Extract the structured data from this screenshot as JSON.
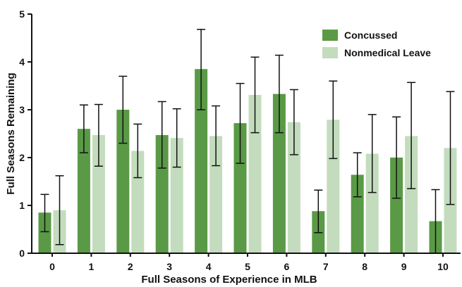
{
  "colors": {
    "concussed": "#5a9a46",
    "nonmedical": "#c3dcbd",
    "axis": "#111111",
    "error": "#111111"
  },
  "chart_data": {
    "type": "bar",
    "xlabel": "Full Seasons of Experience in MLB",
    "ylabel": "Full Seasons Remaining",
    "ylim": [
      0,
      5
    ],
    "yticks": [
      "0",
      "1",
      "2",
      "3",
      "4",
      "5"
    ],
    "categories": [
      "0",
      "1",
      "2",
      "3",
      "4",
      "5",
      "6",
      "7",
      "8",
      "9",
      "10"
    ],
    "legend_position": "top-right",
    "series": [
      {
        "name": "Concussed",
        "values": [
          0.85,
          2.6,
          3.0,
          2.47,
          3.85,
          2.72,
          3.33,
          0.88,
          1.64,
          2.0,
          0.67
        ],
        "err_low": [
          0.45,
          2.1,
          2.3,
          1.78,
          3.0,
          1.88,
          2.52,
          0.43,
          1.18,
          1.15,
          0.0
        ],
        "err_high": [
          1.23,
          3.1,
          3.7,
          3.17,
          4.68,
          3.55,
          4.14,
          1.32,
          2.1,
          2.85,
          1.33
        ]
      },
      {
        "name": "Nonmedical Leave",
        "values": [
          0.9,
          2.47,
          2.14,
          2.41,
          2.45,
          3.31,
          2.74,
          2.79,
          2.08,
          2.45,
          2.2
        ],
        "err_low": [
          0.18,
          1.82,
          1.58,
          1.8,
          1.83,
          2.52,
          2.06,
          1.98,
          1.27,
          1.35,
          1.02
        ],
        "err_high": [
          1.62,
          3.11,
          2.7,
          3.02,
          3.08,
          4.1,
          3.42,
          3.6,
          2.9,
          3.57,
          3.38
        ]
      }
    ]
  }
}
